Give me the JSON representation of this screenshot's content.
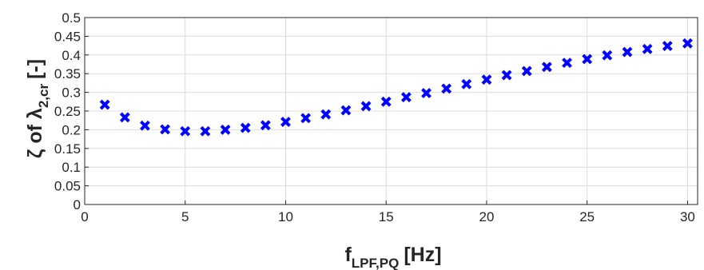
{
  "chart_data": {
    "type": "scatter",
    "title": "",
    "xlabel": {
      "main": "f",
      "subscript": "LPF,PQ",
      "unit": "[Hz]"
    },
    "ylabel": {
      "main": "ζ of λ",
      "subscript": "2,cr",
      "unit": "[-]"
    },
    "xlim": [
      0,
      30.5
    ],
    "ylim": [
      0,
      0.5
    ],
    "xticks": [
      "0",
      "5",
      "10",
      "15",
      "20",
      "25",
      "30"
    ],
    "yticks": [
      "0",
      "0.05",
      "0.1",
      "0.15",
      "0.2",
      "0.25",
      "0.3",
      "0.35",
      "0.4",
      "0.45",
      "0.5"
    ],
    "grid": true,
    "marker": "x",
    "marker_color": "#0000ff",
    "series": [
      {
        "x": [
          1,
          2,
          3,
          4,
          5,
          6,
          7,
          8,
          9,
          10,
          11,
          12,
          13,
          14,
          15,
          16,
          17,
          18,
          19,
          20,
          21,
          22,
          23,
          24,
          25,
          26,
          27,
          28,
          29,
          30
        ],
        "values": [
          0.267,
          0.233,
          0.211,
          0.201,
          0.196,
          0.196,
          0.2,
          0.205,
          0.212,
          0.221,
          0.231,
          0.241,
          0.252,
          0.263,
          0.275,
          0.287,
          0.298,
          0.31,
          0.322,
          0.334,
          0.346,
          0.357,
          0.368,
          0.379,
          0.389,
          0.399,
          0.408,
          0.416,
          0.424,
          0.431
        ]
      }
    ]
  }
}
